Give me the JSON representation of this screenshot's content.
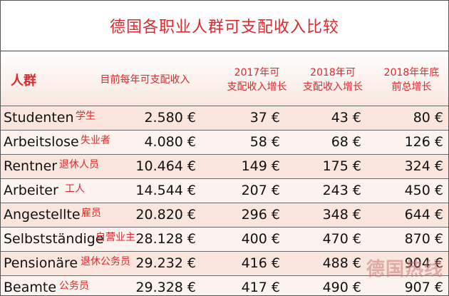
{
  "title": "德国各职业人群可支配收入比较",
  "headers": {
    "group": "人群",
    "income": "目前每年可支配收入",
    "y2017_line1": "2017年可",
    "y2017_line2": "支配收入增长",
    "y2018_line1": "2018年可",
    "y2018_line2": "支配收入增长",
    "total_line1": "2018年年底",
    "total_line2": "前总增长"
  },
  "rows": [
    {
      "de": "Studenten",
      "zh": "学生",
      "income": "2.580 €",
      "y2017": "37 €",
      "y2018": "43 €",
      "total": "80 €"
    },
    {
      "de": "Arbeitslose",
      "zh": "失业者",
      "income": "4.080 €",
      "y2017": "58 €",
      "y2018": "68 €",
      "total": "126 €"
    },
    {
      "de": "Rentner",
      "zh": "退休人员",
      "income": "10.464 €",
      "y2017": "149 €",
      "y2018": "175 €",
      "total": "324 €"
    },
    {
      "de": "Arbeiter",
      "zh": "工人",
      "income": "14.544 €",
      "y2017": "207 €",
      "y2018": "243 €",
      "total": "450 €"
    },
    {
      "de": "Angestellte",
      "zh": "雇员",
      "income": "20.820 €",
      "y2017": "296 €",
      "y2018": "348 €",
      "total": "644 €"
    },
    {
      "de": "Selbstständige",
      "zh": "自营业主",
      "income": "28.128 €",
      "y2017": "400 €",
      "y2018": "470 €",
      "total": "870 €"
    },
    {
      "de": "Pensionäre",
      "zh": "退休公务员",
      "income": "29.232 €",
      "y2017": "416 €",
      "y2018": "488 €",
      "total": "904 €"
    },
    {
      "de": "Beamte",
      "zh": "公务员",
      "income": "29.328 €",
      "y2017": "417 €",
      "y2018": "490 €",
      "total": "907 €"
    }
  ],
  "watermark": "德国热线"
}
